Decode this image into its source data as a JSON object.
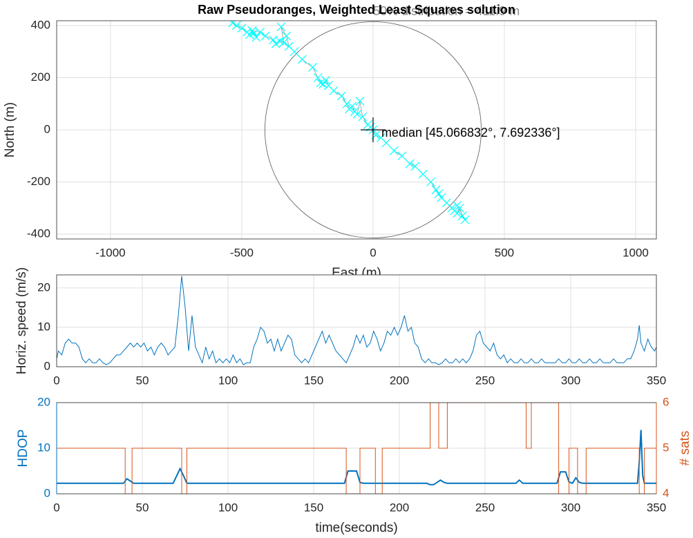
{
  "chart_data": [
    {
      "type": "scatter",
      "title": "Raw Pseudoranges, Weighted Least Squares solution",
      "xlabel": "East (m)",
      "ylabel": "North (m)",
      "xlim": [
        -1205,
        1079
      ],
      "ylim": [
        -418.5,
        418.5
      ],
      "xticks": [
        -1000,
        -500,
        0,
        500,
        1000
      ],
      "yticks": [
        -400,
        -200,
        0,
        200,
        400
      ],
      "grid": true,
      "color": "#00ffff",
      "line_color": "#9a9a9a",
      "x": [
        -535,
        -520,
        -500,
        -480,
        -470,
        -455,
        -445,
        -460,
        -430,
        -410,
        -380,
        -370,
        -355,
        -340,
        -350,
        -330,
        -320,
        -300,
        -270,
        -230,
        -210,
        -200,
        -190,
        -180,
        -170,
        -150,
        -120,
        -100,
        -90,
        -80,
        -70,
        -60,
        -50,
        -40,
        -20,
        -10,
        0,
        10,
        30,
        50,
        80,
        110,
        140,
        160,
        190,
        220,
        240,
        250,
        260,
        280,
        300,
        310,
        320,
        330,
        340,
        350,
        320
      ],
      "y": [
        410,
        400,
        390,
        375,
        365,
        370,
        355,
        380,
        375,
        360,
        345,
        330,
        340,
        335,
        395,
        360,
        320,
        300,
        270,
        240,
        200,
        180,
        175,
        190,
        170,
        150,
        130,
        100,
        80,
        90,
        70,
        60,
        110,
        50,
        20,
        10,
        0,
        -20,
        -30,
        -50,
        -80,
        -100,
        -130,
        -140,
        -170,
        -200,
        -230,
        -245,
        -260,
        -280,
        -300,
        -310,
        -320,
        -300,
        -330,
        -345,
        -290
      ],
      "median": {
        "x": 0,
        "y": 0
      },
      "median_label": "median   [45.066832°, 7.692336°]",
      "circle_radius": 411.9,
      "circle_label": "50% distribution = 411.9 m"
    },
    {
      "type": "line",
      "ylabel": "Horiz. speed (m/s)",
      "xlim": [
        0,
        350
      ],
      "ylim": [
        0,
        23.3
      ],
      "xticks": [
        0,
        50,
        100,
        150,
        200,
        250,
        300,
        350
      ],
      "yticks": [
        0,
        10,
        20
      ],
      "grid": true,
      "color": "#0072bd",
      "x": [
        0,
        1,
        3,
        5,
        7,
        9,
        11,
        13,
        15,
        17,
        19,
        21,
        23,
        25,
        27,
        29,
        31,
        33,
        35,
        37,
        39,
        41,
        43,
        45,
        47,
        49,
        51,
        53,
        55,
        57,
        59,
        61,
        63,
        65,
        67,
        69,
        71,
        73,
        75,
        77,
        79,
        81,
        83,
        85,
        87,
        89,
        91,
        93,
        95,
        97,
        99,
        101,
        103,
        105,
        107,
        109,
        111,
        113,
        115,
        117,
        119,
        121,
        123,
        125,
        127,
        129,
        131,
        133,
        135,
        137,
        139,
        141,
        143,
        145,
        147,
        149,
        151,
        153,
        155,
        157,
        159,
        161,
        163,
        165,
        167,
        169,
        171,
        173,
        175,
        177,
        179,
        181,
        183,
        185,
        187,
        189,
        191,
        193,
        195,
        197,
        199,
        201,
        203,
        205,
        207,
        209,
        211,
        213,
        215,
        217,
        219,
        221,
        223,
        225,
        227,
        229,
        231,
        233,
        235,
        237,
        239,
        241,
        243,
        245,
        247,
        249,
        251,
        253,
        255,
        257,
        259,
        261,
        263,
        265,
        267,
        269,
        271,
        273,
        275,
        277,
        279,
        281,
        283,
        285,
        287,
        289,
        291,
        293,
        295,
        297,
        299,
        301,
        303,
        305,
        307,
        309,
        311,
        313,
        315,
        317,
        319,
        321,
        323,
        325,
        327,
        329,
        331,
        333,
        335,
        337,
        339,
        340,
        341,
        343,
        345,
        347,
        349,
        350
      ],
      "values": [
        2,
        4,
        3,
        6,
        7,
        6,
        6,
        5,
        2,
        1,
        2,
        1,
        1,
        2,
        1,
        0.5,
        1,
        2,
        3,
        3,
        4,
        5,
        6,
        5,
        6,
        5,
        6,
        4,
        5,
        3,
        5,
        6,
        5,
        3,
        4,
        5,
        13,
        23,
        15,
        4,
        13,
        5,
        3,
        1,
        5,
        2,
        4,
        1,
        2,
        1,
        2,
        1,
        3,
        1,
        2,
        0.5,
        1,
        1,
        5,
        7,
        10,
        9,
        6,
        7,
        4,
        7,
        4,
        6,
        8,
        7,
        3,
        2,
        1,
        2,
        1,
        3,
        5,
        7,
        9,
        6,
        8,
        6,
        4,
        3,
        2,
        1,
        3,
        5,
        8,
        6,
        8,
        5,
        6,
        9,
        7,
        4,
        6,
        9,
        8,
        10,
        8,
        10,
        13,
        9,
        10,
        6,
        5,
        2,
        1,
        2,
        1,
        1,
        0.5,
        1,
        2,
        1,
        1,
        2,
        1,
        2,
        1,
        2,
        4,
        8,
        9,
        6,
        5,
        4,
        6,
        3,
        2,
        3,
        1,
        2,
        1,
        1,
        2,
        1,
        1,
        2,
        1,
        1,
        2,
        1,
        1,
        1,
        1,
        2,
        1,
        1,
        2,
        1,
        1,
        2,
        1,
        1,
        2,
        1,
        1,
        2,
        1,
        1,
        1,
        2,
        1,
        1,
        1,
        2,
        2,
        4,
        7,
        10.5,
        6,
        4,
        7,
        5,
        4,
        5
      ]
    },
    {
      "type": "line",
      "xlabel": "time(seconds)",
      "ylabel": "HDOP",
      "y2label": "# sats",
      "xlim": [
        0,
        350
      ],
      "ylim": [
        0,
        20
      ],
      "y2lim": [
        4,
        6
      ],
      "xticks": [
        0,
        50,
        100,
        150,
        200,
        250,
        300,
        350
      ],
      "yticks": [
        0,
        10,
        20
      ],
      "y2ticks": [
        4,
        5,
        6
      ],
      "grid": true,
      "series": [
        {
          "color": "#0072bd",
          "x": [
            0,
            39,
            41,
            43,
            45,
            68,
            72,
            74,
            76,
            168,
            170,
            175,
            177,
            179,
            216,
            218,
            220,
            224,
            226,
            228,
            230,
            268,
            270,
            272,
            292,
            294,
            297,
            299,
            301,
            303,
            305,
            307,
            339,
            340,
            341,
            342,
            343,
            350
          ],
          "values": [
            2.3,
            2.3,
            3.3,
            2.8,
            2.3,
            2.3,
            5.5,
            4,
            2.3,
            2.3,
            5,
            5,
            2.5,
            2.3,
            2.3,
            2,
            2,
            3,
            2.5,
            2.3,
            2.3,
            2.3,
            3,
            2.3,
            2.3,
            4.8,
            4.8,
            2.6,
            2.3,
            3.5,
            2.5,
            2.3,
            2.3,
            7,
            14,
            4,
            2.3,
            2.3
          ]
        },
        {
          "color": "#d95319",
          "axis": "y2",
          "x": [
            0,
            40,
            40,
            44,
            44,
            73,
            73,
            76,
            76,
            169,
            169,
            177,
            177,
            186,
            186,
            190,
            190,
            218,
            218,
            223,
            223,
            228,
            228,
            274,
            274,
            277,
            277,
            293,
            293,
            299,
            299,
            304,
            304,
            309,
            309,
            340,
            340,
            343,
            343,
            350
          ],
          "values": [
            5,
            5,
            4,
            4,
            5,
            5,
            4,
            4,
            5,
            5,
            4,
            4,
            5,
            5,
            4,
            4,
            5,
            5,
            6,
            6,
            5,
            5,
            6,
            6,
            5,
            5,
            6,
            6,
            4,
            4,
            5,
            5,
            4,
            4,
            5,
            5,
            4,
            4,
            5,
            5
          ]
        }
      ]
    }
  ]
}
